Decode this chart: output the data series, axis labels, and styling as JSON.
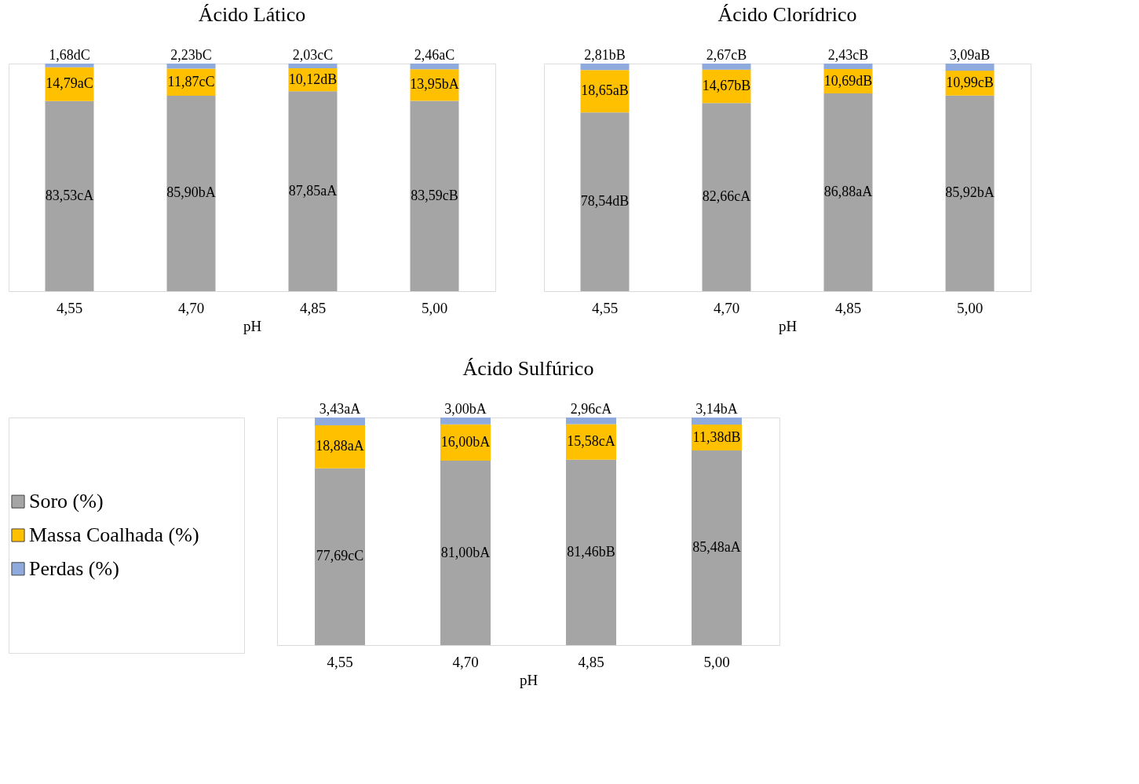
{
  "chart_data": [
    {
      "type": "bar",
      "stacked": true,
      "title": "Ácido Lático",
      "xlabel": "pH",
      "categories": [
        "4,55",
        "4,70",
        "4,85",
        "5,00"
      ],
      "legend": false,
      "series": [
        {
          "color": "#a5a5a5",
          "values": [
            83.53,
            85.9,
            87.85,
            83.59
          ],
          "value_labels": [
            "83,53cA",
            "85,90bA",
            "87,85aA",
            "83,59cB"
          ]
        },
        {
          "color": "#ffc000",
          "values": [
            14.79,
            11.87,
            10.12,
            13.95
          ],
          "value_labels": [
            "14,79aC",
            "11,87cC",
            "10,12dB",
            "13,95bA"
          ]
        },
        {
          "color": "#8faadc",
          "values": [
            1.68,
            2.23,
            2.03,
            2.46
          ],
          "value_labels": [
            "1,68dC",
            "2,23bC",
            "2,03cC",
            "2,46aC"
          ]
        }
      ]
    },
    {
      "type": "bar",
      "stacked": true,
      "title": "Ácido Clorídrico",
      "xlabel": "pH",
      "categories": [
        "4,55",
        "4,70",
        "4,85",
        "5,00"
      ],
      "legend": false,
      "series": [
        {
          "color": "#a5a5a5",
          "values": [
            78.54,
            82.66,
            86.88,
            85.92
          ],
          "value_labels": [
            "78,54dB",
            "82,66cA",
            "86,88aA",
            "85,92bA"
          ]
        },
        {
          "color": "#ffc000",
          "values": [
            18.65,
            14.67,
            10.69,
            10.99
          ],
          "value_labels": [
            "18,65aB",
            "14,67bB",
            "10,69dB",
            "10,99cB"
          ]
        },
        {
          "color": "#8faadc",
          "values": [
            2.81,
            2.67,
            2.43,
            3.09
          ],
          "value_labels": [
            "2,81bB",
            "2,67cB",
            "2,43cB",
            "3,09aB"
          ]
        }
      ]
    },
    {
      "type": "bar",
      "stacked": true,
      "title": "Ácido Sulfúrico",
      "xlabel": "pH",
      "categories": [
        "4,55",
        "4,70",
        "4,85",
        "5,00"
      ],
      "legend": "left",
      "series": [
        {
          "name": "Soro (%)",
          "color": "#a5a5a5",
          "values": [
            77.69,
            81.0,
            81.46,
            85.48
          ],
          "value_labels": [
            "77,69cC",
            "81,00bA",
            "81,46bB",
            "85,48aA"
          ]
        },
        {
          "name": "Massa Coalhada (%)",
          "color": "#ffc000",
          "values": [
            18.88,
            16.0,
            15.58,
            11.38
          ],
          "value_labels": [
            "18,88aA",
            "16,00bA",
            "15,58cA",
            "11,38dB"
          ]
        },
        {
          "name": "Perdas (%)",
          "color": "#8faadc",
          "values": [
            3.43,
            3.0,
            2.96,
            3.14
          ],
          "value_labels": [
            "3,43aA",
            "3,00bA",
            "2,96cA",
            "3,14bA"
          ]
        }
      ]
    }
  ]
}
